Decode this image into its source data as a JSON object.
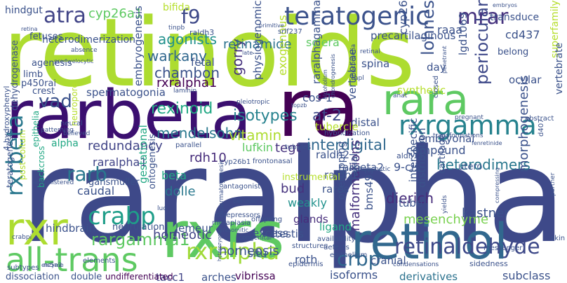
{
  "words": [
    {
      "text": "retinoids",
      "color": "#addc30"
    },
    {
      "text": "raralpha",
      "color": "#3e4989"
    },
    {
      "text": "rarbeta",
      "color": "#3b0f70"
    },
    {
      "text": "ra",
      "color": "#440154"
    },
    {
      "text": "rxrs",
      "color": "#5ec962"
    },
    {
      "text": "retinol",
      "color": "#31688e"
    },
    {
      "text": "rara",
      "color": "#5ec962"
    },
    {
      "text": "rxr",
      "color": "#addc30"
    },
    {
      "text": "all-trans",
      "color": "#5ec962"
    },
    {
      "text": "teratogenic",
      "color": "#3b528b"
    },
    {
      "text": "rxrgamma",
      "color": "#26828e"
    },
    {
      "text": "retinaldehyde",
      "color": "#3e4989"
    },
    {
      "text": "crbp",
      "color": "#31688e"
    },
    {
      "text": "rxralpha",
      "color": "#a0da39"
    },
    {
      "text": "crabp",
      "color": "#1f9e89"
    },
    {
      "text": "rargamma1",
      "color": "#5ec962"
    },
    {
      "text": "rarb",
      "color": "#2a788e"
    },
    {
      "text": "rxrbeta",
      "color": "#2a788e"
    },
    {
      "text": "vad",
      "color": "#3b528b"
    },
    {
      "text": "f9",
      "color": "#3e4989"
    },
    {
      "text": "atra",
      "color": "#414487"
    },
    {
      "text": "mrar",
      "color": "#46327e"
    },
    {
      "text": "cyp26a1",
      "color": "#5ec962"
    },
    {
      "text": "rexinoid",
      "color": "#22a884"
    },
    {
      "text": "isotypes",
      "color": "#26828e"
    },
    {
      "text": "warkany",
      "color": "#31688e"
    },
    {
      "text": "interdigital",
      "color": "#31688e"
    },
    {
      "text": "heterodimers",
      "color": "#2a788e"
    },
    {
      "text": "mendelsohn",
      "color": "#2a788e"
    },
    {
      "text": "redundancy",
      "color": "#414487"
    },
    {
      "text": "lohnes",
      "color": "#3b528b"
    },
    {
      "text": "periocular",
      "color": "#3e4989"
    },
    {
      "text": "gorry",
      "color": "#46327e"
    },
    {
      "text": "malformations",
      "color": "#46327e"
    },
    {
      "text": "dierich",
      "color": "#472d7b"
    },
    {
      "text": "af-2",
      "color": "#3e4989"
    },
    {
      "text": "chambon",
      "color": "#3b528b"
    },
    {
      "text": "agonists",
      "color": "#21918c"
    },
    {
      "text": "rxralpha1",
      "color": "#440154"
    },
    {
      "text": "retinamide",
      "color": "#2c728e"
    },
    {
      "text": "spermatogonia",
      "color": "#3b528b"
    },
    {
      "text": "rdh10",
      "color": "#472d7b"
    },
    {
      "text": "raralpha1",
      "color": "#414487"
    },
    {
      "text": "mesenchyme",
      "color": "#7ad151"
    },
    {
      "text": "vitamin",
      "color": "#addc30"
    },
    {
      "text": "homeotic",
      "color": "#414487"
    },
    {
      "text": "homeosis",
      "color": "#3b528b"
    },
    {
      "text": "caudal",
      "color": "#3b528b"
    },
    {
      "text": "beta",
      "color": "#22a884"
    },
    {
      "text": "dolle",
      "color": "#2a788e"
    },
    {
      "text": "bud",
      "color": "#46327e"
    },
    {
      "text": "weakly",
      "color": "#21918c"
    },
    {
      "text": "morphogenesis",
      "color": "#3b528b"
    },
    {
      "text": "kastner",
      "color": "#3b528b"
    },
    {
      "text": "sclera",
      "color": "#5ec962"
    },
    {
      "text": "raaa",
      "color": "#3b528b"
    },
    {
      "text": "cd437",
      "color": "#3b528b"
    },
    {
      "text": "compound",
      "color": "#3b528b"
    },
    {
      "text": "hindbrain",
      "color": "#3b528b"
    },
    {
      "text": "lemeur",
      "color": "#3b528b"
    },
    {
      "text": "roth",
      "color": "#3b528b"
    },
    {
      "text": "tacc1",
      "color": "#414487"
    },
    {
      "text": "arches",
      "color": "#3b528b"
    },
    {
      "text": "vibrissa",
      "color": "#440154"
    },
    {
      "text": "isoforms",
      "color": "#3b528b"
    },
    {
      "text": "derivatives",
      "color": "#2c728e"
    },
    {
      "text": "subclass",
      "color": "#3b528b"
    },
    {
      "text": "dissociation",
      "color": "#3b528b"
    },
    {
      "text": "double",
      "color": "#3b528b"
    },
    {
      "text": "undifferentiated",
      "color": "#440154"
    },
    {
      "text": "ligand",
      "color": "#22a884"
    },
    {
      "text": "glands",
      "color": "#472d7b"
    },
    {
      "text": "excess",
      "color": "#3b528b"
    },
    {
      "text": "fetal",
      "color": "#3b528b"
    },
    {
      "text": "lufkin",
      "color": "#5ec962"
    },
    {
      "text": "tegt",
      "color": "#46327e"
    },
    {
      "text": "gansmuller",
      "color": "#3b528b"
    },
    {
      "text": "tube",
      "color": "#3b528b"
    },
    {
      "text": "cranial",
      "color": "#3b528b"
    },
    {
      "text": "testis",
      "color": "#3b528b"
    },
    {
      "text": "distal",
      "color": "#3b528b"
    },
    {
      "text": "rarbeta2",
      "color": "#3b528b"
    },
    {
      "text": "9-cis",
      "color": "#3b528b"
    },
    {
      "text": "cos-1",
      "color": "#3b528b"
    },
    {
      "text": "situ",
      "color": "#3b528b"
    },
    {
      "text": "rares",
      "color": "#3b528b"
    },
    {
      "text": "raldh1",
      "color": "#3b528b"
    },
    {
      "text": "raldh2",
      "color": "#3b528b"
    },
    {
      "text": "embryonal",
      "color": "#3b528b"
    },
    {
      "text": "synthetic",
      "color": "#b5de2b"
    },
    {
      "text": "tubercle",
      "color": "#b5de2b"
    },
    {
      "text": "cyp26",
      "color": "#3b528b"
    },
    {
      "text": "spina",
      "color": "#3b528b"
    },
    {
      "text": "day",
      "color": "#3b528b"
    },
    {
      "text": "ocular",
      "color": "#3b528b"
    },
    {
      "text": "lgd1069",
      "color": "#3b528b"
    },
    {
      "text": "belong",
      "color": "#3b528b"
    },
    {
      "text": "transduce",
      "color": "#3b528b"
    },
    {
      "text": "precartilaginous",
      "color": "#3b528b"
    },
    {
      "text": "bms493",
      "color": "#3b528b"
    },
    {
      "text": "hindgut",
      "color": "#3b528b"
    },
    {
      "text": "bifida",
      "color": "#b5de2b"
    },
    {
      "text": "fetuses",
      "color": "#3b528b"
    },
    {
      "text": "heterodimerization",
      "color": "#3b528b"
    },
    {
      "text": "agenesis",
      "color": "#3b528b"
    },
    {
      "text": "limb",
      "color": "#3b528b"
    },
    {
      "text": "p450rai",
      "color": "#3b528b"
    },
    {
      "text": "crest",
      "color": "#3b528b"
    },
    {
      "text": "neurulation",
      "color": "#3b528b"
    },
    {
      "text": "post-coitum",
      "color": "#b5de2b"
    },
    {
      "text": "backcross",
      "color": "#22a884"
    },
    {
      "text": "teratogenesis",
      "color": "#3b528b"
    },
    {
      "text": "dehydrogenase",
      "color": "#3b528b"
    },
    {
      "text": "epithelia",
      "color": "#22a884"
    },
    {
      "text": "physiogenomic",
      "color": "#3b528b"
    },
    {
      "text": "embryogenesis",
      "color": "#3b528b"
    },
    {
      "text": "exogenous",
      "color": "#b5de2b"
    },
    {
      "text": "vertebrae",
      "color": "#3b528b"
    },
    {
      "text": "gestational",
      "color": "#22a884"
    },
    {
      "text": "ontogenesis",
      "color": "#3b528b"
    },
    {
      "text": "overlapping",
      "color": "#3b528b"
    },
    {
      "text": "axial",
      "color": "#3b528b"
    },
    {
      "text": "interspecific",
      "color": "#3b528b"
    },
    {
      "text": "distribution",
      "color": "#3b528b"
    },
    {
      "text": "cartilage",
      "color": "#3b528b"
    },
    {
      "text": "instrumental",
      "color": "#b5de2b"
    },
    {
      "text": "superfamily",
      "color": "#b5de2b"
    },
    {
      "text": "vertebrate",
      "color": "#3b528b"
    },
    {
      "text": "raralphagamma",
      "color": "#3b528b"
    },
    {
      "text": "raldh3",
      "color": "#3b528b"
    },
    {
      "text": "srlf237",
      "color": "#3b528b"
    },
    {
      "text": "tinpb",
      "color": "#3b528b"
    },
    {
      "text": "phocomelia",
      "color": "#3b528b"
    },
    {
      "text": "sidedness",
      "color": "#3b528b"
    },
    {
      "text": "messenger",
      "color": "#3b528b"
    },
    {
      "text": "skin",
      "color": "#3b528b"
    },
    {
      "text": "elements",
      "color": "#3b528b"
    },
    {
      "text": "subtypes",
      "color": "#3b528b"
    },
    {
      "text": "nr5a2",
      "color": "#3b528b"
    },
    {
      "text": "crabpi",
      "color": "#3b528b"
    },
    {
      "text": "structures",
      "color": "#3b528b"
    },
    {
      "text": "offspring",
      "color": "#3b528b"
    },
    {
      "text": "epidermis",
      "color": "#3b528b"
    },
    {
      "text": "epithelium",
      "color": "#3b528b"
    },
    {
      "text": "condensations",
      "color": "#3b528b"
    },
    {
      "text": "defects",
      "color": "#3b528b"
    },
    {
      "text": "availability",
      "color": "#3b528b"
    },
    {
      "text": "metaplasia",
      "color": "#3b528b"
    },
    {
      "text": "frontonasal",
      "color": "#3b528b"
    },
    {
      "text": "cyp26b1",
      "color": "#3b528b"
    },
    {
      "text": "antagonist",
      "color": "#3b528b"
    },
    {
      "text": "corepressors",
      "color": "#3b528b"
    },
    {
      "text": "benzoic",
      "color": "#3b528b"
    },
    {
      "text": "aldh1a2",
      "color": "#3b528b"
    },
    {
      "text": "utero",
      "color": "#3b528b"
    },
    {
      "text": "closed",
      "color": "#3b528b"
    },
    {
      "text": "pregnant",
      "color": "#3b528b"
    },
    {
      "text": "abstract",
      "color": "#3b528b"
    },
    {
      "text": "fenretinide",
      "color": "#3b528b"
    },
    {
      "text": "transformations",
      "color": "#3b528b"
    },
    {
      "text": "morphogenetic",
      "color": "#3b528b"
    },
    {
      "text": "hybridization",
      "color": "#3b528b"
    },
    {
      "text": "tubules",
      "color": "#3b528b"
    },
    {
      "text": "laminin",
      "color": "#3b528b"
    },
    {
      "text": "pleiotropic",
      "color": "#3b528b"
    },
    {
      "text": "parallel",
      "color": "#3b528b"
    },
    {
      "text": "believed",
      "color": "#3b528b"
    },
    {
      "text": "neural",
      "color": "#3b528b"
    },
    {
      "text": "patterning",
      "color": "#3b528b"
    },
    {
      "text": "neuropore",
      "color": "#b5de2b"
    },
    {
      "text": "alpha",
      "color": "#22a884"
    },
    {
      "text": "administered",
      "color": "#3b528b"
    },
    {
      "text": "4-hydroxyphenyl",
      "color": "#3b528b"
    },
    {
      "text": "promyelocytic",
      "color": "#3b528b"
    },
    {
      "text": "absence",
      "color": "#3b528b"
    },
    {
      "text": "retina",
      "color": "#3b528b"
    },
    {
      "text": "primitive",
      "color": "#3b528b"
    },
    {
      "text": "late",
      "color": "#3b528b"
    },
    {
      "text": "embryos",
      "color": "#3b528b"
    },
    {
      "text": "retinal",
      "color": "#3b528b"
    },
    {
      "text": "apl",
      "color": "#3b528b"
    },
    {
      "text": "anat",
      "color": "#3b528b"
    },
    {
      "text": "chondrogenesis",
      "color": "#3b528b"
    },
    {
      "text": "topzb",
      "color": "#3b528b"
    },
    {
      "text": "alcoholism",
      "color": "#3b528b"
    },
    {
      "text": "congenital",
      "color": "#3b528b"
    },
    {
      "text": "presomitic",
      "color": "#3b528b"
    },
    {
      "text": "heterozygotes",
      "color": "#3b528b"
    },
    {
      "text": "spermatogenesis",
      "color": "#3b528b"
    },
    {
      "text": "luo",
      "color": "#3b528b"
    },
    {
      "text": "enzyme",
      "color": "#3b528b"
    },
    {
      "text": "penetrant",
      "color": "#3b528b"
    },
    {
      "text": "yields",
      "color": "#3b528b"
    },
    {
      "text": "compressing",
      "color": "#3b528b"
    },
    {
      "text": "partner",
      "color": "#3b528b"
    },
    {
      "text": "d407",
      "color": "#3b528b"
    }
  ]
}
